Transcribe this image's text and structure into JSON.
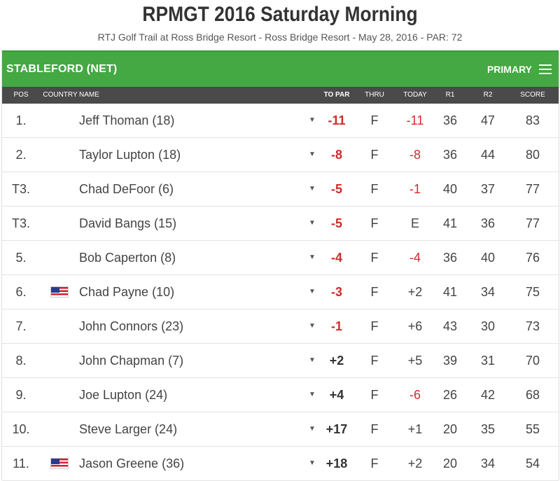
{
  "header": {
    "title": "RPMGT 2016 Saturday Morning",
    "subtitle": "RTJ Golf Trail at Ross Bridge Resort - Ross Bridge Resort - May 28, 2016 - PAR: 72"
  },
  "bar": {
    "title": "STABLEFORD (NET)",
    "primary_label": "PRIMARY"
  },
  "columns": {
    "pos": "POS",
    "country": "COUNTRY",
    "name": "NAME",
    "topar": "TO PAR",
    "thru": "THRU",
    "today": "TODAY",
    "r1": "R1",
    "r2": "R2",
    "score": "SCORE"
  },
  "rows": [
    {
      "pos": "1.",
      "flag": "",
      "name": "Jeff Thoman (18)",
      "topar": "-11",
      "thru": "F",
      "today": "-11",
      "r1": "36",
      "r2": "47",
      "score": "83"
    },
    {
      "pos": "2.",
      "flag": "",
      "name": "Taylor Lupton (18)",
      "topar": "-8",
      "thru": "F",
      "today": "-8",
      "r1": "36",
      "r2": "44",
      "score": "80"
    },
    {
      "pos": "T3.",
      "flag": "",
      "name": "Chad DeFoor (6)",
      "topar": "-5",
      "thru": "F",
      "today": "-1",
      "r1": "40",
      "r2": "37",
      "score": "77"
    },
    {
      "pos": "T3.",
      "flag": "",
      "name": "David Bangs (15)",
      "topar": "-5",
      "thru": "F",
      "today": "E",
      "r1": "41",
      "r2": "36",
      "score": "77"
    },
    {
      "pos": "5.",
      "flag": "",
      "name": "Bob Caperton (8)",
      "topar": "-4",
      "thru": "F",
      "today": "-4",
      "r1": "36",
      "r2": "40",
      "score": "76"
    },
    {
      "pos": "6.",
      "flag": "us-flag-icon",
      "name": "Chad Payne (10)",
      "topar": "-3",
      "thru": "F",
      "today": "+2",
      "r1": "41",
      "r2": "34",
      "score": "75"
    },
    {
      "pos": "7.",
      "flag": "",
      "name": "John Connors (23)",
      "topar": "-1",
      "thru": "F",
      "today": "+6",
      "r1": "43",
      "r2": "30",
      "score": "73"
    },
    {
      "pos": "8.",
      "flag": "",
      "name": "John Chapman (7)",
      "topar": "+2",
      "thru": "F",
      "today": "+5",
      "r1": "39",
      "r2": "31",
      "score": "70"
    },
    {
      "pos": "9.",
      "flag": "",
      "name": "Joe Lupton (24)",
      "topar": "+4",
      "thru": "F",
      "today": "-6",
      "r1": "26",
      "r2": "42",
      "score": "68"
    },
    {
      "pos": "10.",
      "flag": "",
      "name": "Steve Larger (24)",
      "topar": "+17",
      "thru": "F",
      "today": "+1",
      "r1": "20",
      "r2": "35",
      "score": "55"
    },
    {
      "pos": "11.",
      "flag": "us-flag-icon",
      "name": "Jason Greene (36)",
      "topar": "+18",
      "thru": "F",
      "today": "+2",
      "r1": "20",
      "r2": "34",
      "score": "54"
    }
  ],
  "colors": {
    "accent_green": "#44a843",
    "header_gray": "#4a4a4a",
    "under_par_red": "#d32a2a"
  },
  "icons": {
    "row_expand": "caret-down-icon",
    "menu": "hamburger-menu-icon"
  }
}
